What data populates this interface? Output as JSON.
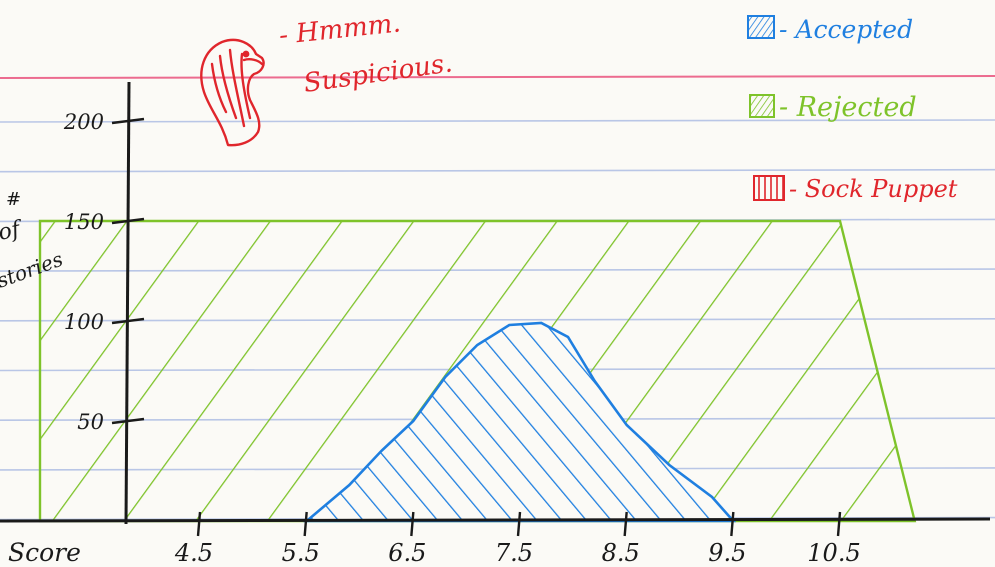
{
  "colors": {
    "paper": "#fbfaf6",
    "rule_line": "#b9c6e6",
    "margin_line": "#ec6b8f",
    "ink": "#1a1a1a",
    "accepted": "#1f7fe0",
    "rejected": "#7ec32a",
    "sock_puppet": "#e0262c"
  },
  "annotation": {
    "line1": "- Hmmm.",
    "line2": "Suspicious."
  },
  "legend": [
    {
      "label": "- Accepted",
      "color": "#1f7fe0",
      "hatch": "forward"
    },
    {
      "label": "- Rejected",
      "color": "#7ec32a",
      "hatch": "forward"
    },
    {
      "label": "- Sock Puppet",
      "color": "#e0262c",
      "hatch": "vertical"
    }
  ],
  "chart_data": {
    "type": "area",
    "title": "",
    "xlabel": "Score",
    "ylabel": [
      "#",
      "of",
      "stories"
    ],
    "x_ticks": [
      "4.5",
      "5.5",
      "6.5",
      "7.5",
      "8.5",
      "9.5",
      "10.5"
    ],
    "y_ticks": [
      50,
      100,
      150,
      200
    ],
    "xlim": [
      3.0,
      11.4
    ],
    "ylim": [
      0,
      220
    ],
    "grid": false,
    "legend_position": "top-right",
    "series": [
      {
        "name": "Rejected",
        "color": "#7ec32a",
        "x": [
          3.0,
          10.4,
          10.5,
          11.2
        ],
        "y": [
          150,
          150,
          150,
          0
        ]
      },
      {
        "name": "Accepted",
        "color": "#1f7fe0",
        "x": [
          5.5,
          5.9,
          6.2,
          6.5,
          6.8,
          7.1,
          7.4,
          7.7,
          7.95,
          8.2,
          8.5,
          8.9,
          9.3,
          9.5
        ],
        "y": [
          0,
          18,
          35,
          50,
          72,
          88,
          98,
          99,
          92,
          70,
          48,
          28,
          12,
          0
        ]
      },
      {
        "name": "Sock Puppet",
        "color": "#e0262c",
        "x": [],
        "y": []
      }
    ]
  }
}
